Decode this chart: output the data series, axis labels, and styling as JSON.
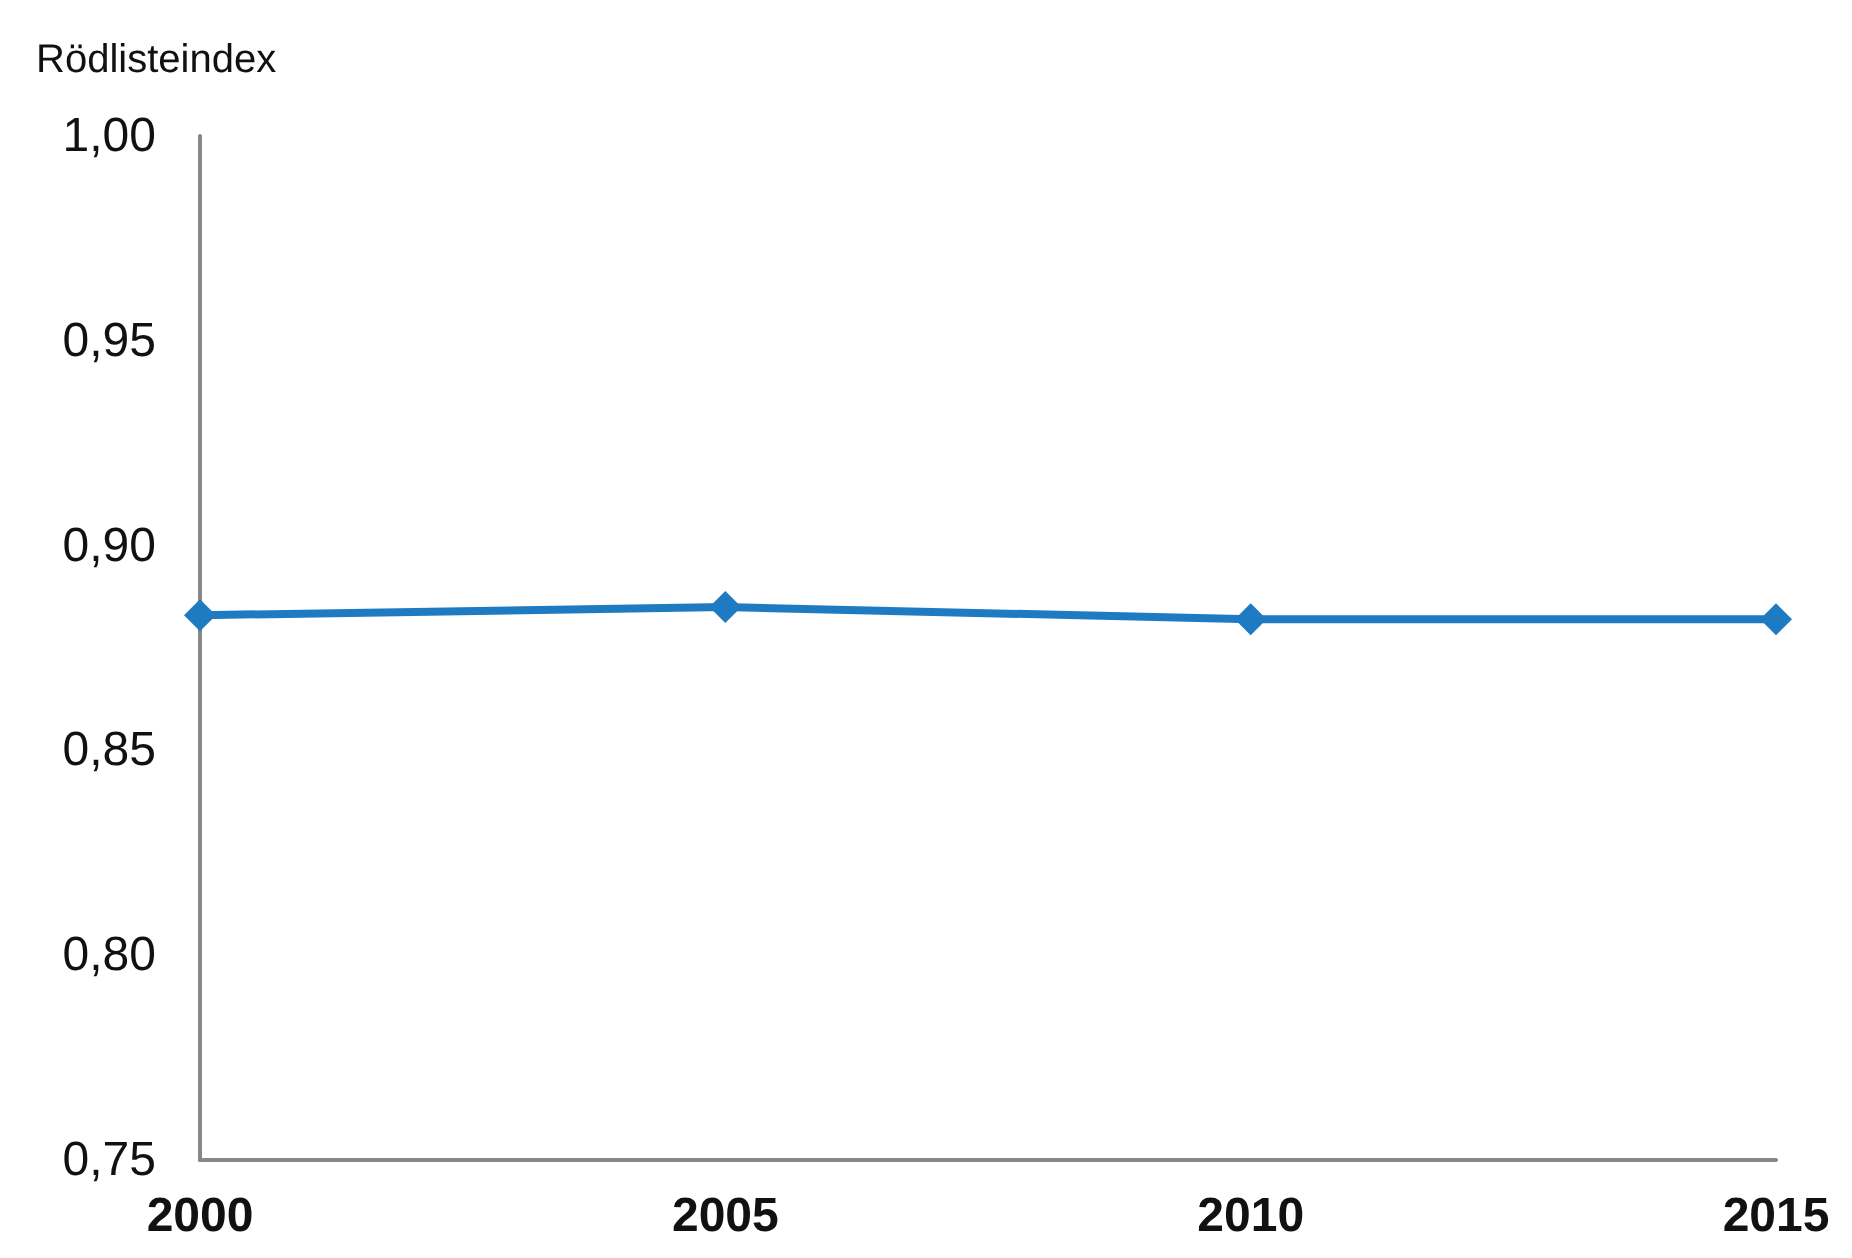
{
  "chart_data": {
    "type": "line",
    "ylabel": "Rödlisteindex",
    "x": [
      2000,
      2005,
      2010,
      2015
    ],
    "series": [
      {
        "color": "#1f7bc1",
        "values": [
          0.883,
          0.885,
          0.882,
          0.882
        ]
      }
    ],
    "xlim": [
      2000,
      2015
    ],
    "xticks": [
      2000,
      2005,
      2010,
      2015
    ],
    "ylim": [
      0.75,
      1.0
    ],
    "yticks": [
      {
        "value": 0.75,
        "label": "0,75"
      },
      {
        "value": 0.8,
        "label": "0,80"
      },
      {
        "value": 0.85,
        "label": "0,85"
      },
      {
        "value": 0.9,
        "label": "0,90"
      },
      {
        "value": 0.95,
        "label": "0,95"
      },
      {
        "value": 1.0,
        "label": "1,00"
      }
    ],
    "grid": false,
    "marker": "diamond",
    "line_style": "solid"
  }
}
